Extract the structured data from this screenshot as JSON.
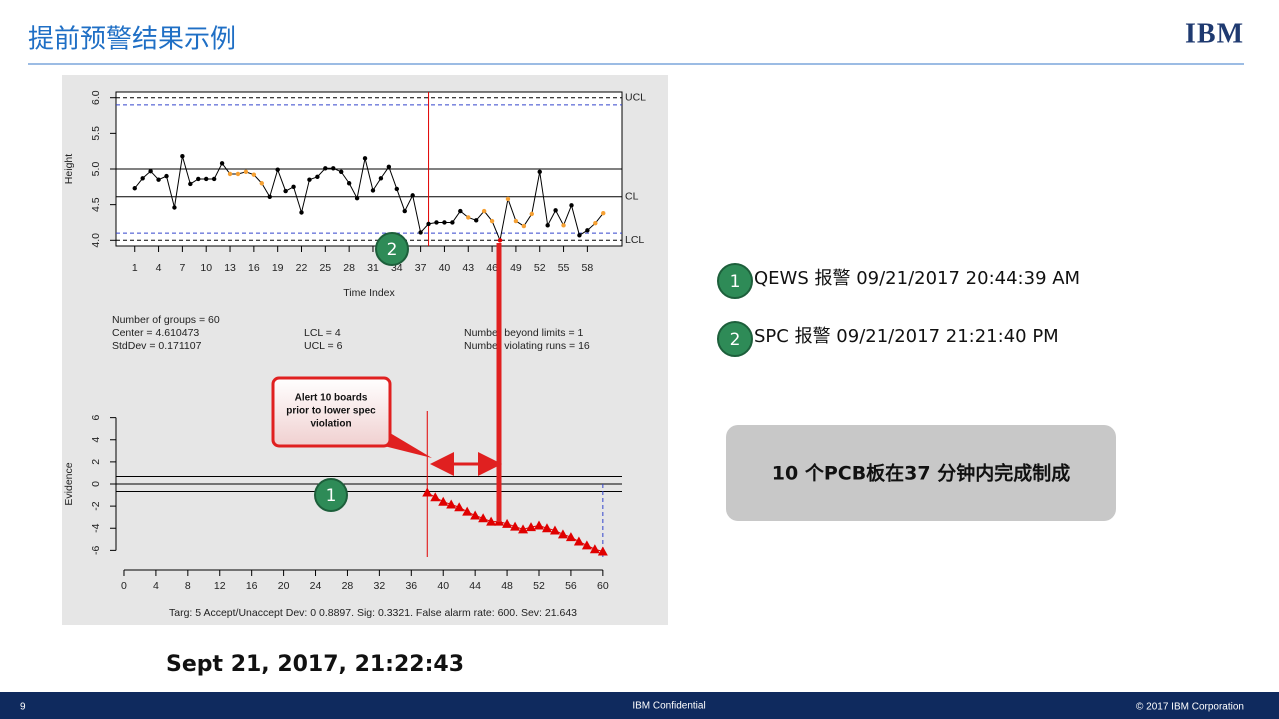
{
  "header": {
    "title": "提前预警结果示例",
    "logo": "IBM"
  },
  "chart_data": [
    {
      "type": "line",
      "y_label": "Height",
      "x_label": "Time Index",
      "x": [
        1,
        2,
        3,
        4,
        5,
        6,
        7,
        8,
        9,
        10,
        11,
        12,
        13,
        14,
        15,
        16,
        17,
        18,
        19,
        20,
        21,
        22,
        23,
        24,
        25,
        26,
        27,
        28,
        29,
        30,
        31,
        32,
        33,
        34,
        35,
        36,
        37,
        38,
        39,
        40,
        41,
        42,
        43,
        44,
        45,
        46,
        47,
        48,
        49,
        50,
        51,
        52,
        53,
        54,
        55,
        56,
        57,
        58,
        59,
        60
      ],
      "values": [
        4.73,
        4.87,
        4.97,
        4.85,
        4.9,
        4.46,
        5.18,
        4.79,
        4.86,
        4.86,
        4.86,
        5.08,
        4.93,
        4.93,
        4.96,
        4.92,
        4.8,
        4.61,
        4.99,
        4.69,
        4.75,
        4.39,
        4.85,
        4.89,
        5.01,
        5.01,
        4.96,
        4.8,
        4.59,
        5.15,
        4.7,
        4.87,
        5.03,
        4.72,
        4.41,
        4.63,
        4.11,
        4.23,
        4.25,
        4.25,
        4.25,
        4.41,
        4.32,
        4.28,
        4.41,
        4.27,
        4.0,
        4.58,
        4.27,
        4.2,
        4.37,
        4.96,
        4.21,
        4.42,
        4.21,
        4.49,
        4.07,
        4.14,
        4.24,
        4.38
      ],
      "line_color": "#000000",
      "point_colors": [
        "#000000",
        "#000000",
        "#000000",
        "#000000",
        "#000000",
        "#000000",
        "#000000",
        "#000000",
        "#000000",
        "#000000",
        "#000000",
        "#000000",
        "#f5a033",
        "#f5a033",
        "#f5a033",
        "#f5a033",
        "#f5a033",
        "#000000",
        "#000000",
        "#000000",
        "#000000",
        "#000000",
        "#000000",
        "#000000",
        "#000000",
        "#000000",
        "#000000",
        "#000000",
        "#000000",
        "#000000",
        "#000000",
        "#000000",
        "#000000",
        "#000000",
        "#000000",
        "#000000",
        "#000000",
        "#000000",
        "#000000",
        "#000000",
        "#000000",
        "#000000",
        "#f5a033",
        "#000000",
        "#f5a033",
        "#f5a033",
        "#e00000",
        "#f5a033",
        "#f5a033",
        "#f5a033",
        "#f5a033",
        "#000000",
        "#000000",
        "#000000",
        "#f5a033",
        "#000000",
        "#000000",
        "#000000",
        "#f5a033",
        "#f5a033"
      ],
      "xlim": [
        -1.36,
        62.36
      ],
      "ylim": [
        3.92,
        6.08
      ],
      "xticks": [
        1,
        4,
        7,
        10,
        13,
        16,
        19,
        22,
        25,
        28,
        31,
        34,
        37,
        40,
        43,
        46,
        49,
        52,
        55,
        58
      ],
      "yticks": [
        {
          "value": 4,
          "label": "4.0"
        },
        {
          "value": 4.5,
          "label": "4.5"
        },
        {
          "value": 5,
          "label": "5.0"
        },
        {
          "value": 5.5,
          "label": "5.5"
        },
        {
          "value": 6,
          "label": "6.0"
        }
      ],
      "hlines": [
        {
          "value": 6,
          "label": "UCL",
          "color": "#000000",
          "dashed": true
        },
        {
          "value": 5.9,
          "color": "#3344cc",
          "dashed": true
        },
        {
          "value": 5,
          "color": "#000000",
          "dashed": false
        },
        {
          "value": 4.61,
          "label": "CL",
          "color": "#000000",
          "dashed": false
        },
        {
          "value": 4.1,
          "color": "#3344cc",
          "dashed": true
        },
        {
          "value": 4,
          "label": "LCL",
          "color": "#000000",
          "dashed": true
        }
      ],
      "vlines": [
        {
          "value": 38,
          "color": "#e00000",
          "dashed": false
        }
      ],
      "stats": [
        "Number of groups = 60",
        "Center = 4.610473",
        "StdDev = 0.171107",
        "LCL = 4",
        "UCL = 6",
        "Number beyond limits = 1",
        "Number violating runs = 16"
      ]
    },
    {
      "type": "line",
      "y_label": "Evidence",
      "x": [
        38,
        39,
        40,
        41,
        42,
        43,
        44,
        45,
        46,
        47,
        48,
        49,
        50,
        51,
        52,
        53,
        54,
        55,
        56,
        57,
        58,
        59,
        60
      ],
      "values": [
        -0.77,
        -1.2,
        -1.6,
        -1.85,
        -2.1,
        -2.5,
        -2.85,
        -3.1,
        -3.4,
        -3.4,
        -3.6,
        -3.85,
        -4.1,
        -3.9,
        -3.75,
        -4.0,
        -4.2,
        -4.55,
        -4.8,
        -5.2,
        -5.55,
        -5.9,
        -6.1
      ],
      "color": "#e00000",
      "marker": "triangle",
      "xlim": [
        -1,
        62.4
      ],
      "ylim": [
        -6.6,
        6.6
      ],
      "xticks": [
        0,
        4,
        8,
        12,
        16,
        20,
        24,
        28,
        32,
        36,
        40,
        44,
        48,
        52,
        56,
        60
      ],
      "yticks": [
        -6,
        -4,
        -2,
        0,
        2,
        4,
        6
      ],
      "hlines": [
        {
          "value": 0.68,
          "color": "#000000",
          "dashed": false
        },
        {
          "value": 0,
          "color": "#000000",
          "dashed": false
        },
        {
          "value": -0.68,
          "color": "#000000",
          "dashed": false
        }
      ],
      "vlines": [
        {
          "value": 38,
          "color": "#e00000",
          "dashed": false
        },
        {
          "value": 60,
          "color": "#3344cc",
          "dashed": true
        }
      ],
      "caption": "Targ: 5 Accept/Unaccept Dev: 0 0.8897. Sig: 0.3321. False alarm rate: 600. Sev: 21.643"
    }
  ],
  "callout": {
    "lines": [
      "Alert 10 boards",
      "prior to lower spec",
      "violation"
    ]
  },
  "badges": [
    "1",
    "2"
  ],
  "alerts": [
    {
      "badge": "1",
      "text": "QEWS 报警 09/21/2017  20:44:39 AM"
    },
    {
      "badge": "2",
      "text": "SPC 报警 09/21/2017  21:21:40 PM"
    }
  ],
  "summary": "10 个PCB板在37 分钟内完成制成",
  "timestamp": "Sept 21, 2017, 21:22:43",
  "footer": {
    "page": "9",
    "center": "IBM Confidential",
    "right": "© 2017 IBM Corporation"
  }
}
